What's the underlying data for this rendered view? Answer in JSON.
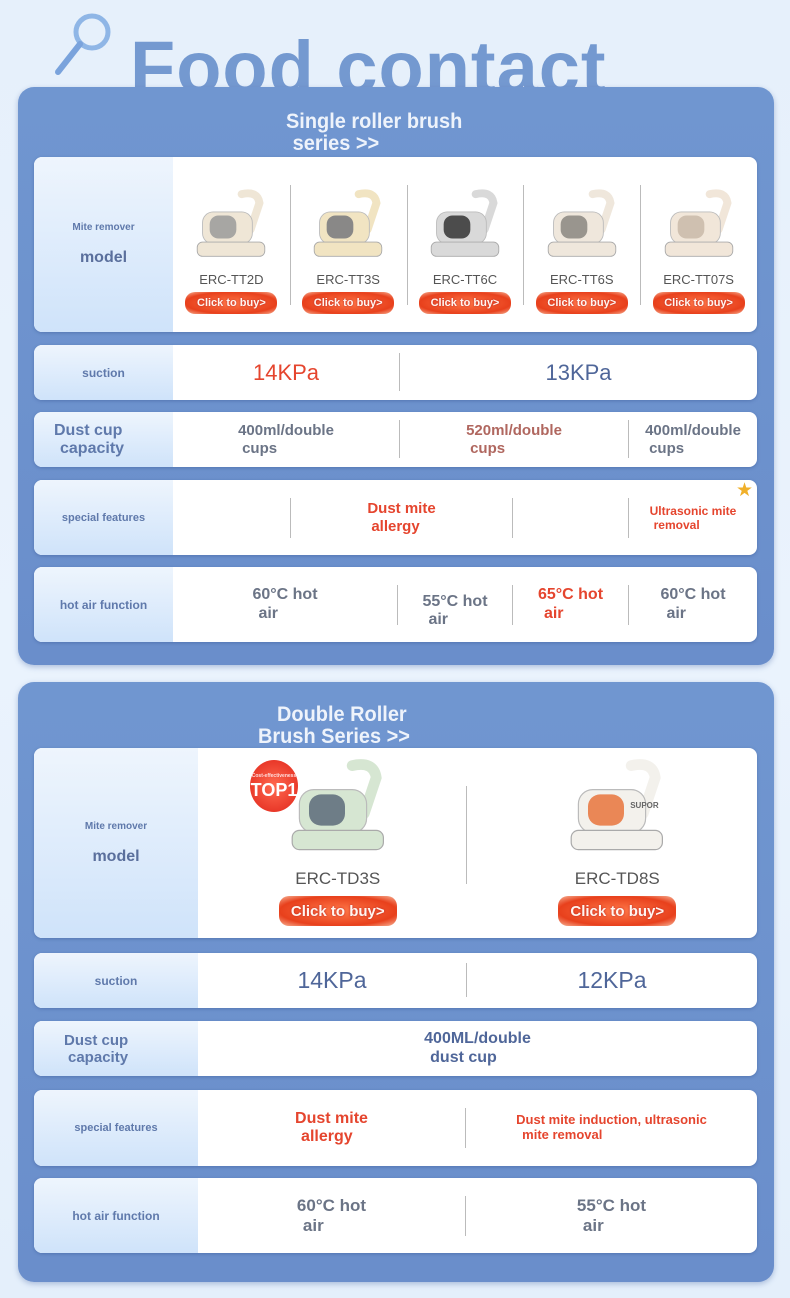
{
  "title": "Food contact",
  "single": {
    "header": [
      "Single roller brush",
      "series >>"
    ],
    "label_small": "Mite remover",
    "label_big": "model",
    "products": [
      {
        "name": "ERC-TT2D",
        "buy": "Click to buy>",
        "color": "#efe6d6",
        "cup": "#9a9a9a"
      },
      {
        "name": "ERC-TT3S",
        "buy": "Click to buy>",
        "color": "#f1e4c2",
        "cup": "#77787d"
      },
      {
        "name": "ERC-TT6C",
        "buy": "Click to buy>",
        "color": "#d9d9d9",
        "cup": "#333333"
      },
      {
        "name": "ERC-TT6S",
        "buy": "Click to buy>",
        "color": "#efe7dc",
        "cup": "#8a8680"
      },
      {
        "name": "ERC-TT07S",
        "buy": "Click to buy>",
        "color": "#f1e6d9",
        "cup": "#c9b9a8"
      }
    ],
    "suction": {
      "label": "suction",
      "values": [
        "14KPa",
        "13KPa"
      ]
    },
    "dust": {
      "label": [
        "Dust cup",
        "capacity"
      ],
      "values": [
        [
          "400ml/double",
          "cups"
        ],
        [
          "520ml/double",
          "cups"
        ],
        [
          "400ml/double",
          "cups"
        ]
      ]
    },
    "special": {
      "label": "special features",
      "values": [
        [
          "Dust mite",
          "allergy"
        ],
        [
          "Ultrasonic mite",
          "removal"
        ]
      ]
    },
    "hot": {
      "label": "hot air function",
      "values": [
        [
          "60°C hot",
          "air"
        ],
        [
          "55°C hot",
          "air"
        ],
        [
          "65°C hot",
          "air"
        ],
        [
          "60°C hot",
          "air"
        ]
      ]
    }
  },
  "double": {
    "header": [
      "Double Roller",
      "Brush Series >>"
    ],
    "label_small": "Mite remover",
    "label_big": "model",
    "badge": "TOP1",
    "badge_small": "Cost-effectiveness",
    "products": [
      {
        "name": "ERC-TD3S",
        "buy": "Click to buy>",
        "color": "#d6e6d2",
        "cup": "#5c6a7a"
      },
      {
        "name": "ERC-TD8S",
        "buy": "Click to buy>",
        "color": "#f3f1ec",
        "cup": "#e8743c",
        "brand": "SUPOR"
      }
    ],
    "suction": {
      "label": "suction",
      "values": [
        "14KPa",
        "12KPa"
      ]
    },
    "dust": {
      "label": [
        "Dust cup",
        "capacity"
      ],
      "value": [
        "400ML/double",
        "dust cup"
      ]
    },
    "special": {
      "label": "special features",
      "values": [
        [
          "Dust mite",
          "allergy"
        ],
        [
          "Dust mite induction, ultrasonic",
          "mite removal"
        ]
      ]
    },
    "hot": {
      "label": "hot air function",
      "values": [
        [
          "60°C hot",
          "air"
        ],
        [
          "55°C hot",
          "air"
        ]
      ]
    }
  },
  "colors": {
    "red": "#e5452e",
    "blue": "#4f6699",
    "gray": "#6b7486",
    "brown": "#b0675f",
    "panel": "#6f93cf"
  }
}
